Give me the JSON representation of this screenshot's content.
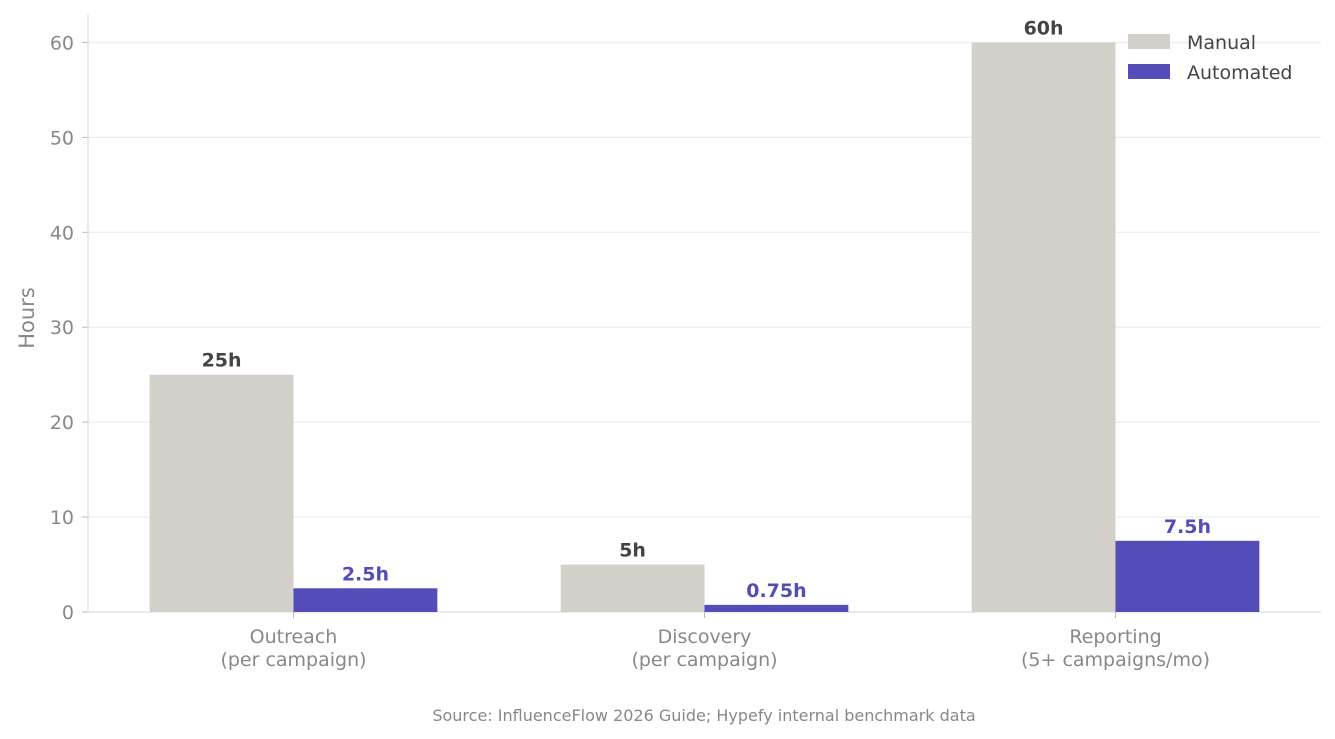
{
  "chart_data": {
    "type": "bar",
    "categories": [
      [
        "Outreach",
        "(per campaign)"
      ],
      [
        "Discovery",
        "(per campaign)"
      ],
      [
        "Reporting",
        "(5+ campaigns/mo)"
      ]
    ],
    "series": [
      {
        "name": "Manual",
        "values": [
          25,
          5,
          60
        ],
        "labels": [
          "25h",
          "5h",
          "60h"
        ],
        "color": "#d3d0c9",
        "label_color": "#444444"
      },
      {
        "name": "Automated",
        "values": [
          2.5,
          0.75,
          7.5
        ],
        "labels": [
          "2.5h",
          "0.75h",
          "7.5h"
        ],
        "color": "#544cb8",
        "label_color": "#544cb8"
      }
    ],
    "title": "",
    "xlabel": "",
    "ylabel": "Hours",
    "ylim": [
      0,
      63
    ],
    "yticks": [
      0,
      10,
      20,
      30,
      40,
      50,
      60
    ],
    "grid": true,
    "legend_position": "top-right"
  },
  "source": "Source: InfluenceFlow 2026 Guide; Hypefy internal benchmark data"
}
